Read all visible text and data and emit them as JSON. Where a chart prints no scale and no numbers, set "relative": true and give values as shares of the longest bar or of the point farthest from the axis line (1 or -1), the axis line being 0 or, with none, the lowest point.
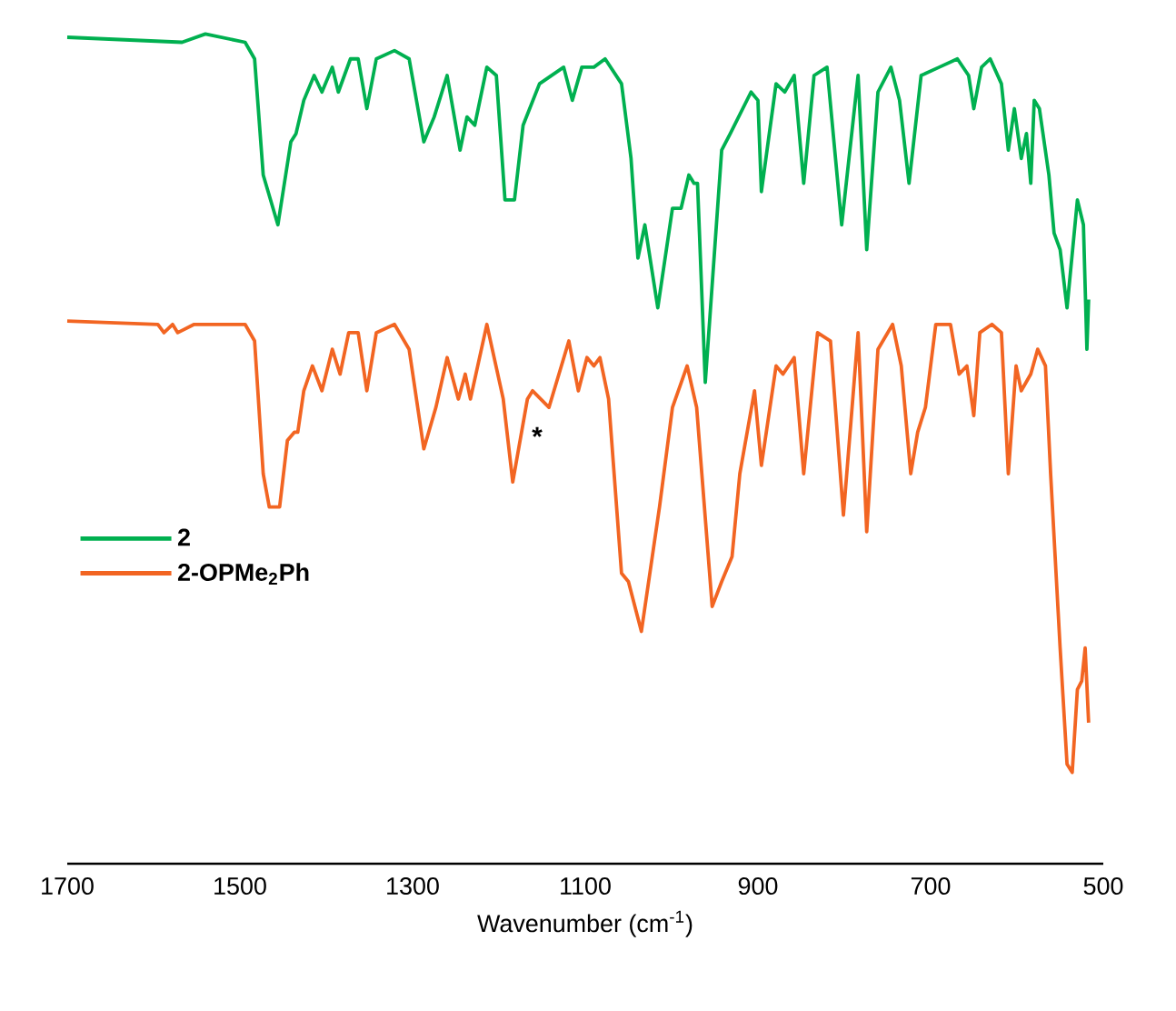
{
  "chart_data": {
    "type": "line",
    "xlabel": "Wavenumber (cm$^{-1}$)",
    "relative": true,
    "xlim": [
      1700,
      500
    ],
    "xticks": [
      1700,
      1500,
      1300,
      1100,
      900,
      700,
      500
    ],
    "legend": "left",
    "marker": "none",
    "line_style": "solid",
    "grid": false,
    "tick_labels": "x",
    "annotations": [
      "*"
    ],
    "series": [
      {
        "name": "2",
        "color": "#00b050",
        "x": [
          1700,
          1567,
          1540,
          1494,
          1483,
          1473,
          1456,
          1441,
          1435,
          1426,
          1414,
          1405,
          1393,
          1386,
          1372,
          1363,
          1353,
          1342,
          1321,
          1304,
          1287,
          1275,
          1260,
          1245,
          1237,
          1228,
          1214,
          1203,
          1193,
          1182,
          1172,
          1153,
          1125,
          1115,
          1104,
          1090,
          1077,
          1058,
          1047,
          1039,
          1031,
          1016,
          999,
          989,
          980,
          974,
          970,
          961,
          942,
          932,
          908,
          900,
          896,
          879,
          869,
          858,
          847,
          835,
          820,
          803,
          784,
          774,
          761,
          746,
          736,
          725,
          711,
          690,
          669,
          656,
          650,
          641,
          631,
          618,
          610,
          603,
          595,
          589,
          584,
          580,
          574,
          563,
          557,
          550,
          542,
          530,
          523,
          519,
          517
        ],
        "values": [
          0.996,
          0.99,
          1.0,
          0.99,
          0.97,
          0.83,
          0.77,
          0.87,
          0.88,
          0.92,
          0.95,
          0.93,
          0.96,
          0.93,
          0.97,
          0.97,
          0.91,
          0.97,
          0.98,
          0.97,
          0.87,
          0.9,
          0.95,
          0.86,
          0.9,
          0.89,
          0.96,
          0.95,
          0.8,
          0.8,
          0.89,
          0.94,
          0.96,
          0.92,
          0.96,
          0.96,
          0.97,
          0.94,
          0.85,
          0.73,
          0.77,
          0.67,
          0.79,
          0.79,
          0.83,
          0.82,
          0.82,
          0.58,
          0.86,
          0.88,
          0.93,
          0.92,
          0.81,
          0.94,
          0.93,
          0.95,
          0.82,
          0.95,
          0.96,
          0.77,
          0.95,
          0.74,
          0.93,
          0.96,
          0.92,
          0.82,
          0.95,
          0.96,
          0.97,
          0.95,
          0.91,
          0.96,
          0.97,
          0.94,
          0.86,
          0.91,
          0.85,
          0.88,
          0.82,
          0.92,
          0.91,
          0.83,
          0.76,
          0.74,
          0.67,
          0.8,
          0.77,
          0.62,
          0.68
        ]
      },
      {
        "name": "2-OPMe$_{2}$Ph",
        "color": "#f26522",
        "x": [
          1700,
          1595,
          1588,
          1578,
          1572,
          1553,
          1494,
          1483,
          1473,
          1466,
          1454,
          1445,
          1437,
          1433,
          1426,
          1416,
          1405,
          1393,
          1384,
          1374,
          1363,
          1353,
          1342,
          1321,
          1304,
          1287,
          1273,
          1260,
          1247,
          1239,
          1233,
          1214,
          1195,
          1184,
          1167,
          1161,
          1142,
          1119,
          1108,
          1098,
          1090,
          1083,
          1073,
          1058,
          1050,
          1035,
          1014,
          999,
          982,
          971,
          953,
          942,
          930,
          921,
          904,
          896,
          879,
          871,
          858,
          847,
          831,
          816,
          801,
          784,
          774,
          761,
          744,
          734,
          723,
          715,
          706,
          694,
          677,
          667,
          658,
          650,
          643,
          629,
          618,
          610,
          601,
          595,
          584,
          576,
          567,
          561,
          550,
          542,
          536,
          530,
          525,
          521,
          517
        ],
        "values": [
          0.654,
          0.65,
          0.64,
          0.65,
          0.64,
          0.65,
          0.65,
          0.63,
          0.47,
          0.43,
          0.43,
          0.51,
          0.52,
          0.52,
          0.57,
          0.6,
          0.57,
          0.62,
          0.59,
          0.64,
          0.64,
          0.57,
          0.64,
          0.65,
          0.62,
          0.5,
          0.55,
          0.61,
          0.56,
          0.59,
          0.56,
          0.65,
          0.56,
          0.46,
          0.56,
          0.57,
          0.55,
          0.63,
          0.57,
          0.61,
          0.6,
          0.61,
          0.56,
          0.35,
          0.34,
          0.28,
          0.43,
          0.55,
          0.6,
          0.55,
          0.31,
          0.34,
          0.37,
          0.47,
          0.57,
          0.48,
          0.6,
          0.59,
          0.61,
          0.47,
          0.64,
          0.63,
          0.42,
          0.64,
          0.4,
          0.62,
          0.65,
          0.6,
          0.47,
          0.52,
          0.55,
          0.65,
          0.65,
          0.59,
          0.6,
          0.54,
          0.64,
          0.65,
          0.64,
          0.47,
          0.6,
          0.57,
          0.59,
          0.62,
          0.6,
          0.47,
          0.26,
          0.12,
          0.11,
          0.21,
          0.22,
          0.26,
          0.17
        ]
      }
    ]
  }
}
